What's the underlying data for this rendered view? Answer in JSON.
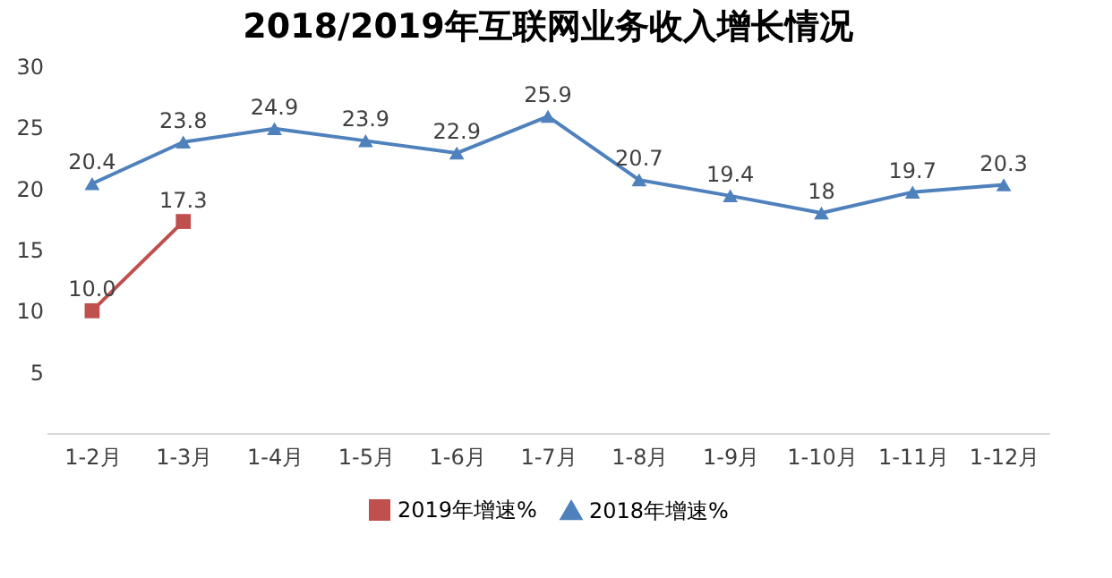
{
  "chart_data": {
    "type": "line",
    "title": "2018/2019年互联网业务收入增长情况",
    "categories": [
      "1-2月",
      "1-3月",
      "1-4月",
      "1-5月",
      "1-6月",
      "1-7月",
      "1-8月",
      "1-9月",
      "1-10月",
      "1-11月",
      "1-12月"
    ],
    "series": [
      {
        "name": "2019年增速%",
        "color": "#c0504d",
        "marker": "square",
        "values": [
          10.0,
          17.3,
          null,
          null,
          null,
          null,
          null,
          null,
          null,
          null,
          null
        ],
        "value_labels": [
          "10.0",
          "17.3",
          null,
          null,
          null,
          null,
          null,
          null,
          null,
          null,
          null
        ]
      },
      {
        "name": "2018年增速%",
        "color": "#4f81bd",
        "marker": "triangle",
        "values": [
          20.4,
          23.8,
          24.9,
          23.9,
          22.9,
          25.9,
          20.7,
          19.4,
          18,
          19.7,
          20.3
        ],
        "value_labels": [
          "20.4",
          "23.8",
          "24.9",
          "23.9",
          "22.9",
          "25.9",
          "20.7",
          "19.4",
          "18",
          "19.7",
          "20.3"
        ]
      }
    ],
    "ylim": [
      0,
      30
    ],
    "yticks": [
      5,
      10,
      15,
      20,
      25,
      30
    ],
    "grid": false,
    "legend": "bottom",
    "line_style": "solid"
  }
}
